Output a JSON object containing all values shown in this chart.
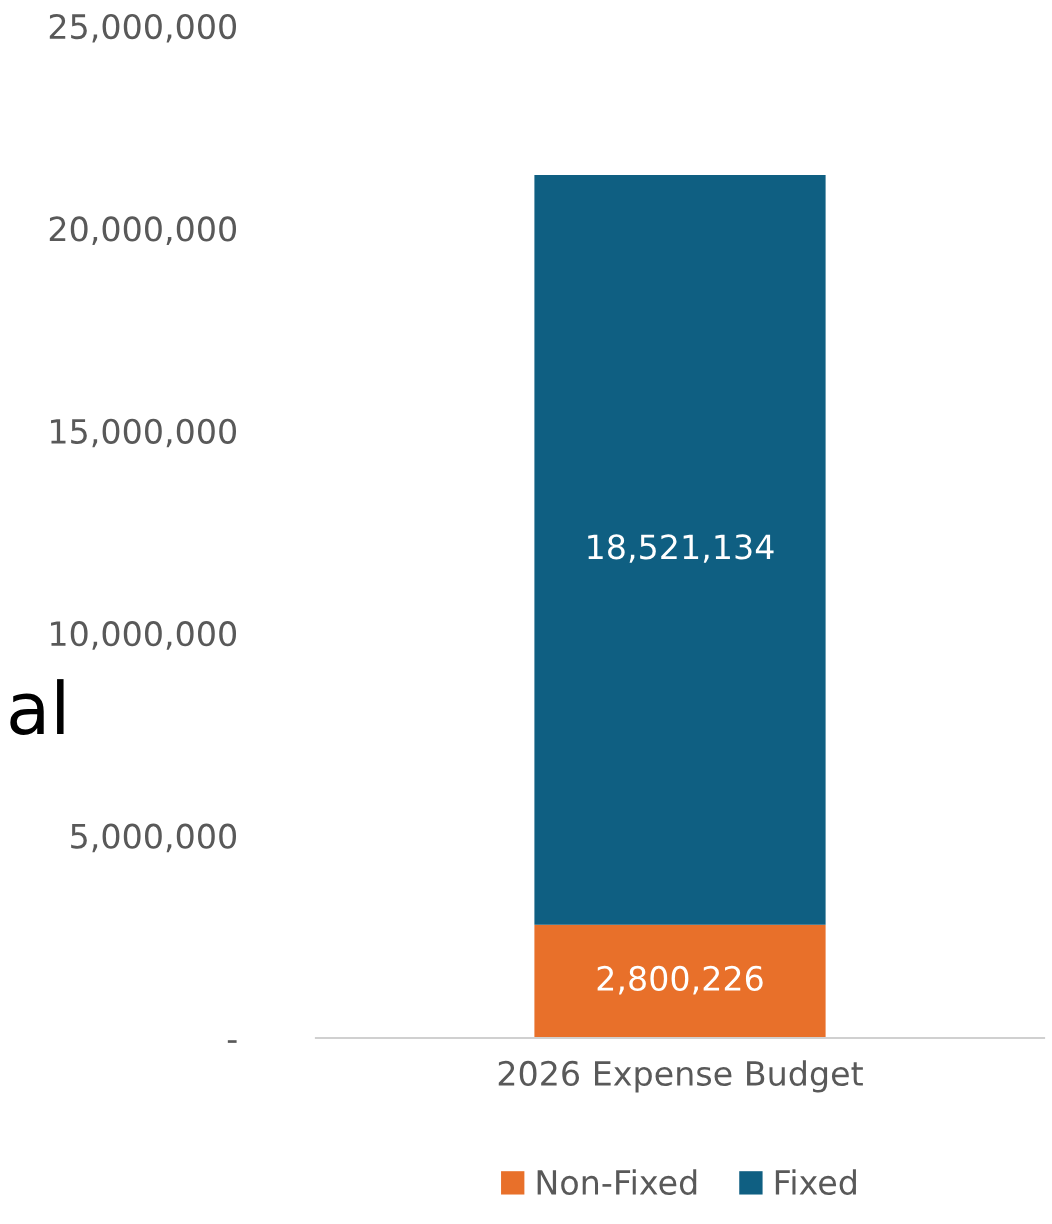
{
  "chart_data": {
    "type": "bar",
    "stacked": true,
    "categories": [
      "2026 Expense Budget"
    ],
    "series": [
      {
        "name": "Non-Fixed",
        "color": "#e8702a",
        "values": [
          2800226
        ],
        "value_labels": [
          "2,800,226"
        ]
      },
      {
        "name": "Fixed",
        "color": "#0f5f82",
        "values": [
          18521134
        ],
        "value_labels": [
          "18,521,134"
        ]
      }
    ],
    "ylim": [
      0,
      25000000
    ],
    "yticks": [
      {
        "value": 0,
        "label": "-"
      },
      {
        "value": 5000000,
        "label": "5,000,000"
      },
      {
        "value": 10000000,
        "label": "10,000,000"
      },
      {
        "value": 15000000,
        "label": "15,000,000"
      },
      {
        "value": 20000000,
        "label": "20,000,000"
      },
      {
        "value": 25000000,
        "label": "25,000,000"
      }
    ],
    "legend": "bottom",
    "grid": false,
    "annotations": [
      "al"
    ]
  }
}
